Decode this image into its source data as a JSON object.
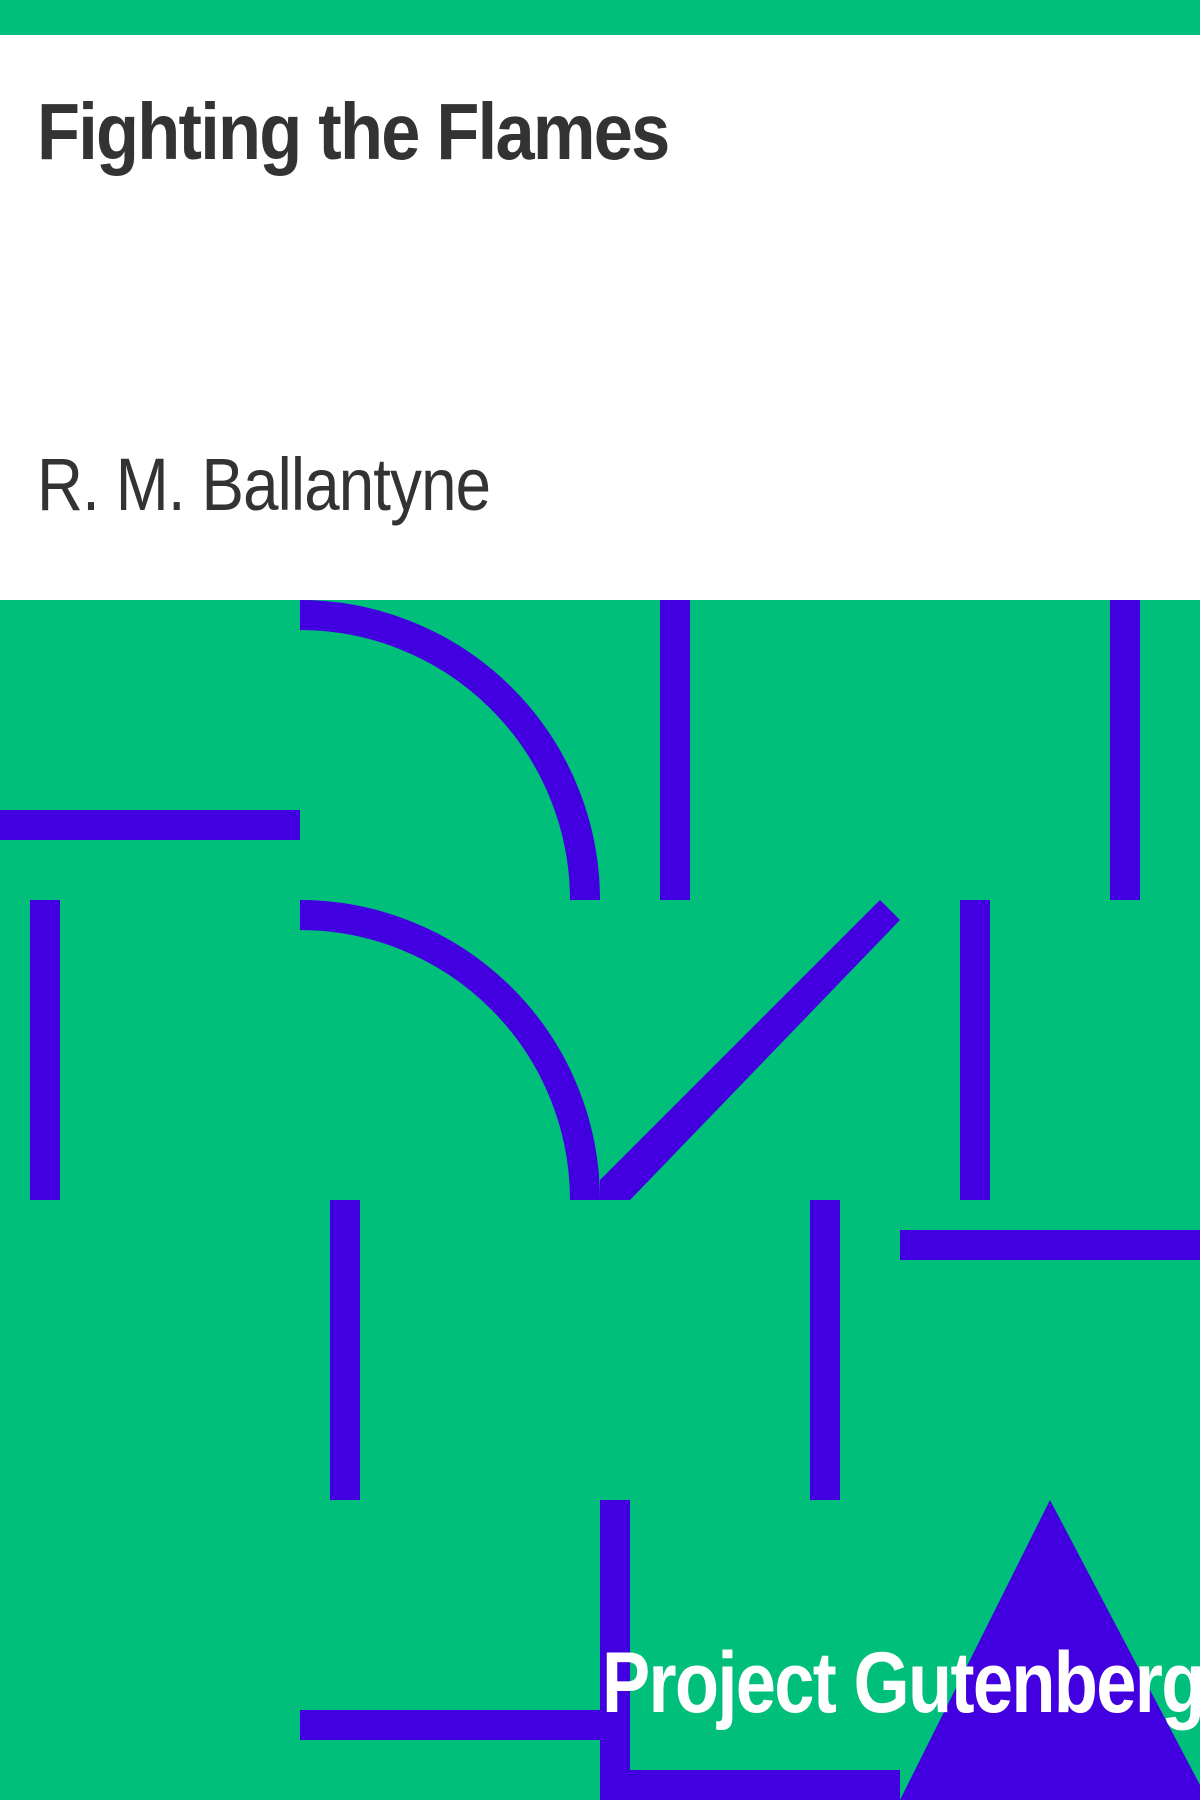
{
  "cover": {
    "title": "Fighting the Flames",
    "author": "R. M. Ballantyne",
    "publisher": "Project Gutenberg"
  },
  "colors": {
    "background_green": "#00bf7b",
    "pattern_purple": "#4200e0",
    "header_background": "#ffffff",
    "text_dark": "#333333",
    "text_light": "#ffffff"
  }
}
